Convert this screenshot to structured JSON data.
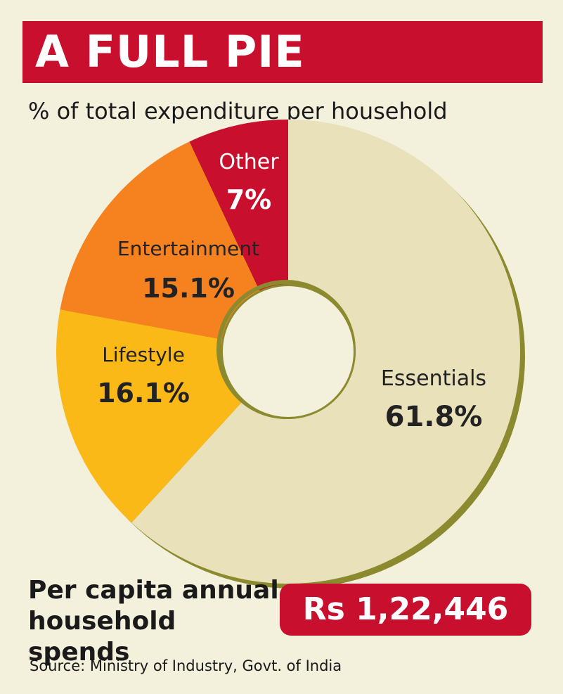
{
  "title": "A FULL PIE",
  "subtitle": "% of total expenditure per household",
  "colors": {
    "banner": "#c8102e",
    "background": "#f3f0dc",
    "shadow": "#8c8a2e"
  },
  "chart_data": {
    "type": "pie",
    "donut": true,
    "title": "A FULL PIE",
    "subtitle": "% of total expenditure per household",
    "categories": [
      "Essentials",
      "Lifestyle",
      "Entertainment",
      "Other"
    ],
    "values": [
      61.8,
      16.1,
      15.1,
      7
    ],
    "labels": [
      "61.8%",
      "16.1%",
      "15.1%",
      "7%"
    ],
    "colors": [
      "#e8e1b9",
      "#fbb918",
      "#f5821f",
      "#c8102e"
    ],
    "legend": "none"
  },
  "footer": {
    "label": "Per capita annual household spends",
    "value": "Rs 1,22,446"
  },
  "source": "Source: Ministry of Industry, Govt. of India"
}
